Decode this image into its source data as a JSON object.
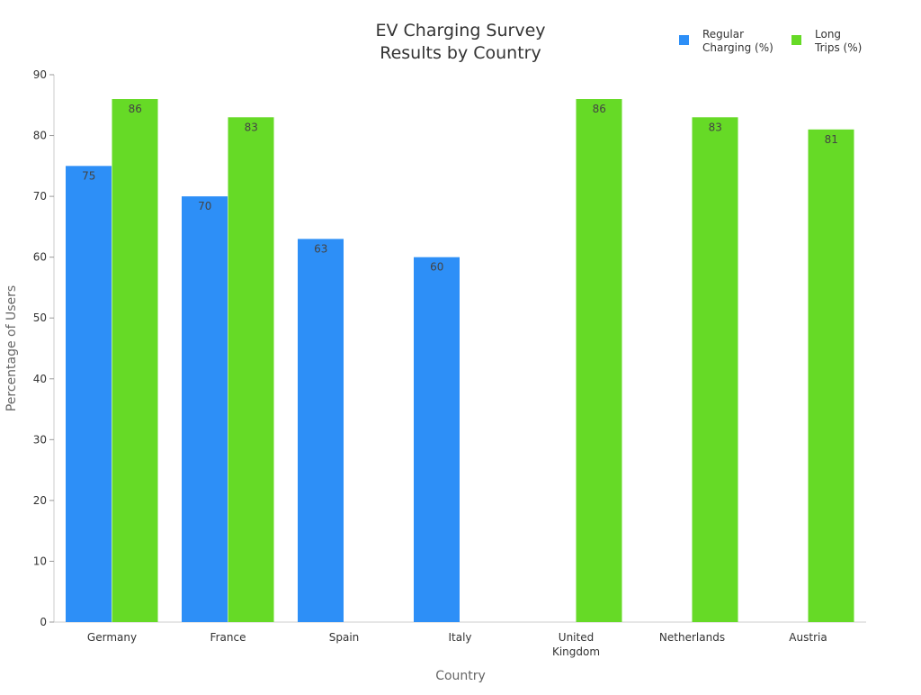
{
  "chart_data": {
    "type": "bar",
    "title": [
      "EV Charging Survey",
      "Results by Country"
    ],
    "xlabel": "Country",
    "ylabel": "Percentage of Users",
    "ylim": [
      0,
      90
    ],
    "yticks": [
      0,
      10,
      20,
      30,
      40,
      50,
      60,
      70,
      80,
      90
    ],
    "categories": [
      [
        "Germany"
      ],
      [
        "France"
      ],
      [
        "Spain"
      ],
      [
        "Italy"
      ],
      [
        "United",
        "Kingdom"
      ],
      [
        "Netherlands"
      ],
      [
        "Austria"
      ]
    ],
    "series": [
      {
        "name": [
          "Regular",
          "Charging (%)"
        ],
        "color": "#2d8ff7",
        "values": [
          75,
          70,
          63,
          60,
          null,
          null,
          null
        ]
      },
      {
        "name": [
          "Long",
          "Trips (%)"
        ],
        "color": "#66da26",
        "values": [
          86,
          83,
          null,
          null,
          86,
          83,
          81
        ]
      }
    ],
    "legend": "top-right",
    "grid": false
  }
}
